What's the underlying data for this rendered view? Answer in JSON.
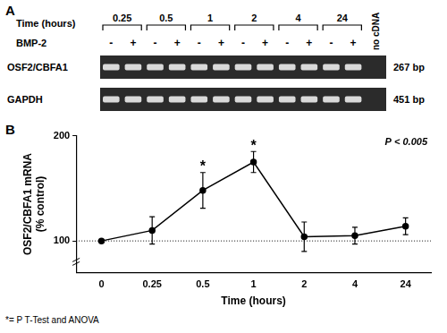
{
  "panel_a": {
    "label": "A",
    "time_axis_label": "Time (hours)",
    "times": [
      "0.25",
      "0.5",
      "1",
      "2",
      "4",
      "24"
    ],
    "treatment_name": "BMP-2",
    "treatment_states": [
      "-",
      "+"
    ],
    "control_lane": "no cDNA",
    "bands": [
      {
        "name": "OSF2/CBFA1",
        "size": "267 bp"
      },
      {
        "name": "GAPDH",
        "size": "451 bp"
      }
    ]
  },
  "chart_data": {
    "type": "line",
    "panel_label": "B",
    "x_label": "Time (hours)",
    "y_label": [
      "OSF2/CBFA1 mRNA",
      "(% control)"
    ],
    "categories": [
      "0",
      "0.25",
      "0.5",
      "1",
      "2",
      "4",
      "24"
    ],
    "values": [
      100,
      110,
      148,
      175,
      104,
      105,
      114
    ],
    "errors": [
      0,
      13,
      17,
      10,
      14,
      8,
      8
    ],
    "color": "#000000",
    "marker": "circle",
    "ylim": [
      70,
      200
    ],
    "yticks": [
      100,
      200
    ],
    "grid": false,
    "reference_line": 100,
    "significance_marker": "*",
    "significant": [
      false,
      false,
      true,
      true,
      false,
      false,
      false
    ],
    "p_value_note": "P < 0.005",
    "footnote": "*= P T-Test and ANOVA"
  }
}
